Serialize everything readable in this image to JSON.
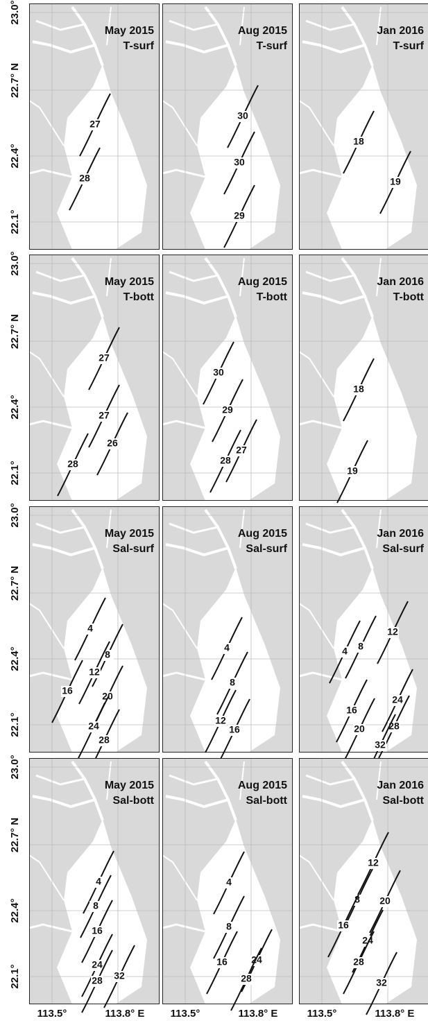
{
  "axes": {
    "y_labels": [
      "23.0°",
      "22.7° N",
      "22.4°",
      "22.1°"
    ],
    "x_labels": [
      "113.5°",
      "113.8° E"
    ]
  },
  "panels": [
    {
      "date": "May 2015",
      "variable": "T-surf",
      "contour_labels": [
        "27",
        "28"
      ]
    },
    {
      "date": "Aug 2015",
      "variable": "T-surf",
      "contour_labels": [
        "30",
        "30",
        "29"
      ]
    },
    {
      "date": "Jan 2016",
      "variable": "T-surf",
      "contour_labels": [
        "18",
        "19"
      ]
    },
    {
      "date": "May 2015",
      "variable": "T-bott",
      "contour_labels": [
        "27",
        "27",
        "26",
        "28"
      ]
    },
    {
      "date": "Aug 2015",
      "variable": "T-bott",
      "contour_labels": [
        "30",
        "29",
        "28",
        "27"
      ]
    },
    {
      "date": "Jan 2016",
      "variable": "T-bott",
      "contour_labels": [
        "18",
        "19"
      ]
    },
    {
      "date": "May 2015",
      "variable": "Sal-surf",
      "contour_labels": [
        "4",
        "8",
        "12",
        "16",
        "20",
        "24",
        "28"
      ]
    },
    {
      "date": "Aug 2015",
      "variable": "Sal-surf",
      "contour_labels": [
        "4",
        "8",
        "12",
        "16"
      ]
    },
    {
      "date": "Jan 2016",
      "variable": "Sal-surf",
      "contour_labels": [
        "4",
        "8",
        "12",
        "16",
        "20",
        "24",
        "28",
        "32"
      ]
    },
    {
      "date": "May 2015",
      "variable": "Sal-bott",
      "contour_labels": [
        "4",
        "8",
        "16",
        "24",
        "28",
        "32"
      ]
    },
    {
      "date": "Aug 2015",
      "variable": "Sal-bott",
      "contour_labels": [
        "4",
        "8",
        "16",
        "24",
        "28"
      ]
    },
    {
      "date": "Jan 2016",
      "variable": "Sal-bott",
      "contour_labels": [
        "12",
        "8",
        "20",
        "16",
        "24",
        "28",
        "32"
      ]
    }
  ]
}
